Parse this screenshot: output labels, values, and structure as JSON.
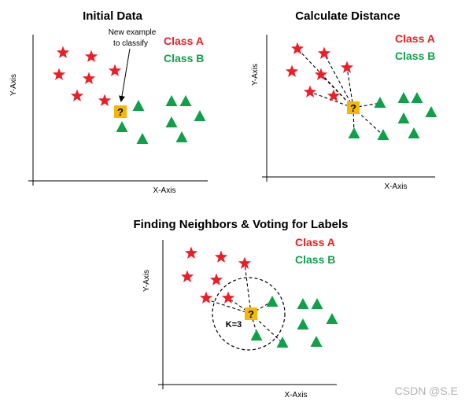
{
  "colors": {
    "class_a": "#ee1c25",
    "class_b": "#10a04a",
    "query": "#f5b800",
    "axis": "#000000"
  },
  "icons": {
    "class_a_marker": "star-icon",
    "class_b_marker": "triangle-icon",
    "query_marker": "question-square-icon"
  },
  "panel1": {
    "title": "Initial Data",
    "legend_a": "Class A",
    "legend_b": "Class B",
    "xlabel": "X-Axis",
    "ylabel": "Y-Axis",
    "annotation_line1": "New example",
    "annotation_line2": "to classify",
    "query_symbol": "?"
  },
  "panel2": {
    "title": "Calculate Distance",
    "legend_a": "Class A",
    "legend_b": "Class B",
    "xlabel": "X-Axis",
    "ylabel": "Y-Axis",
    "query_symbol": "?"
  },
  "panel3": {
    "title": "Finding Neighbors & Voting for Labels",
    "legend_a": "Class A",
    "legend_b": "Class B",
    "xlabel": "X-Axis",
    "ylabel": "Y-Axis",
    "k_label": "K=3",
    "query_symbol": "?"
  },
  "watermark": "CSDN @S.E"
}
